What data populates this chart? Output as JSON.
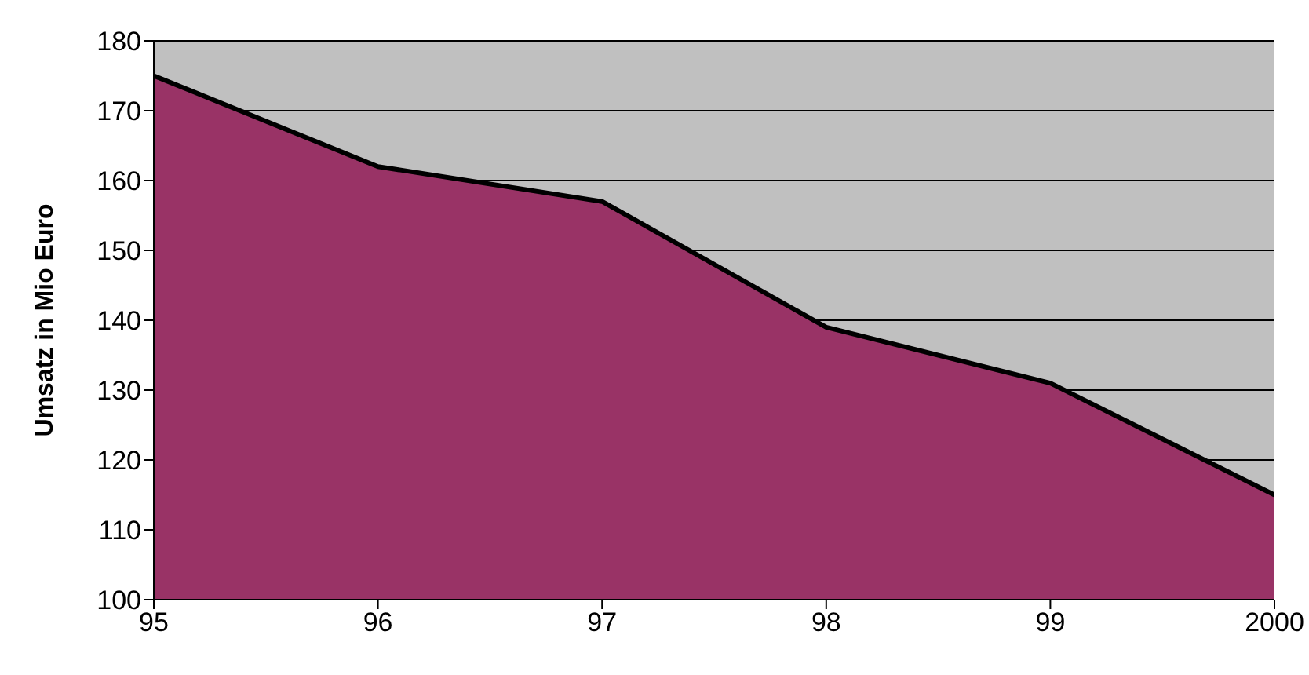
{
  "chart_data": {
    "type": "area",
    "ylabel": "Umsatz in Mio Euro",
    "categories": [
      "95",
      "96",
      "97",
      "98",
      "99",
      "2000"
    ],
    "series": [
      {
        "color": "#993366",
        "values": [
          175,
          162,
          157,
          139,
          131,
          115
        ]
      }
    ],
    "ylim": [
      100,
      180
    ],
    "yticks": [
      100,
      110,
      120,
      130,
      140,
      150,
      160,
      170,
      180
    ],
    "grid": "y",
    "line_style": "solid",
    "marker": "none"
  }
}
